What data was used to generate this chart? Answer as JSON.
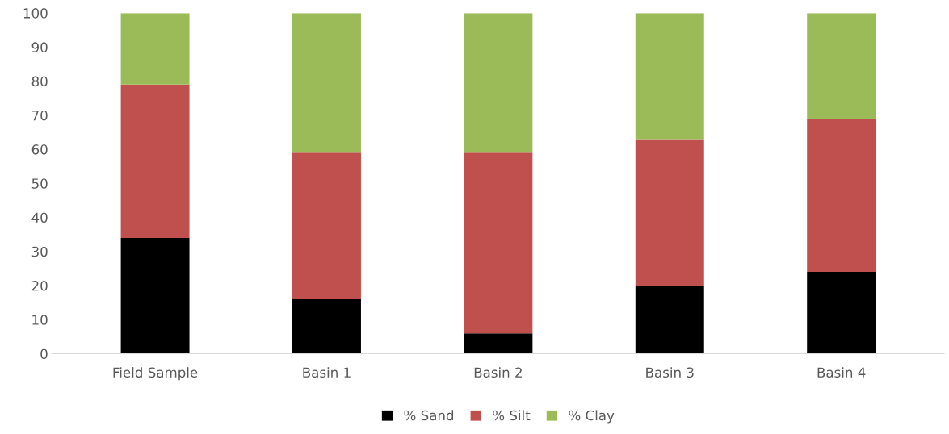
{
  "chart_data": {
    "type": "bar",
    "stacked": true,
    "categories": [
      "Field Sample",
      "Basin 1",
      "Basin 2",
      "Basin 3",
      "Basin 4"
    ],
    "series": [
      {
        "name": "% Sand",
        "color": "#000000",
        "values": [
          34,
          16,
          6,
          20,
          24
        ]
      },
      {
        "name": "% Silt",
        "color": "#c0504d",
        "values": [
          45,
          43,
          53,
          43,
          45
        ]
      },
      {
        "name": "% Clay",
        "color": "#9bbb59",
        "values": [
          21,
          41,
          41,
          37,
          31
        ]
      }
    ],
    "ylim": [
      0,
      100
    ],
    "yticks": [
      0,
      10,
      20,
      30,
      40,
      50,
      60,
      70,
      80,
      90,
      100
    ],
    "grid": false,
    "legend": "bottom"
  }
}
